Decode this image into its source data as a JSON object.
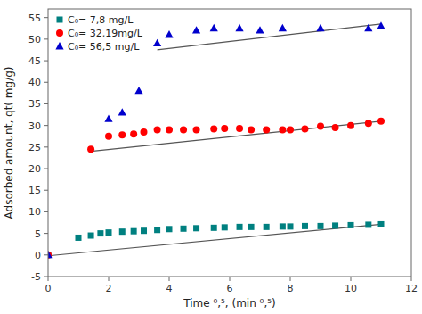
{
  "chart_data": {
    "type": "scatter",
    "xlabel": "Time ⁰,⁵, (min ⁰,⁵)",
    "ylabel": "Adsorbed amount, qt( mg/g)",
    "xlim": [
      0,
      12
    ],
    "ylim": [
      -5,
      57
    ],
    "xticks": [
      0,
      2,
      4,
      6,
      8,
      10,
      12
    ],
    "yticks": [
      -5,
      0,
      5,
      10,
      15,
      20,
      25,
      30,
      35,
      40,
      45,
      50,
      55
    ],
    "grid": false,
    "legend": "upper left",
    "series": [
      {
        "type": "line",
        "color": "#555555",
        "x": [
          0.0,
          11.0
        ],
        "values": [
          -0.2,
          7.1
        ]
      },
      {
        "type": "line",
        "color": "#555555",
        "x": [
          1.414,
          11.0
        ],
        "values": [
          24.0,
          31.0
        ]
      },
      {
        "type": "line",
        "color": "#555555",
        "x": [
          3.606,
          11.0
        ],
        "values": [
          47.5,
          53.5
        ]
      },
      {
        "type": "scatter",
        "name": "C₀= 7,8 mg/L",
        "color": "#008080",
        "marker": "square",
        "x": [
          0.0,
          1.0,
          1.414,
          1.732,
          2.0,
          2.449,
          2.828,
          3.162,
          3.606,
          4.0,
          4.472,
          4.899,
          5.477,
          5.831,
          6.325,
          6.708,
          7.211,
          7.746,
          8.0,
          8.485,
          9.0,
          9.487,
          10.0,
          10.583,
          11.0
        ],
        "values": [
          0.0,
          4.0,
          4.5,
          5.0,
          5.2,
          5.4,
          5.5,
          5.6,
          5.8,
          6.0,
          6.1,
          6.2,
          6.3,
          6.4,
          6.5,
          6.5,
          6.5,
          6.6,
          6.6,
          6.7,
          6.7,
          6.8,
          6.9,
          7.0,
          7.1
        ]
      },
      {
        "type": "scatter",
        "name": "C₀= 32,19mg/L",
        "color": "#ff0000",
        "marker": "circle",
        "x": [
          0.0,
          1.414,
          2.0,
          2.449,
          2.828,
          3.162,
          3.606,
          4.0,
          4.472,
          4.899,
          5.477,
          5.831,
          6.325,
          6.708,
          7.211,
          7.746,
          8.0,
          8.485,
          9.0,
          9.487,
          10.0,
          10.583,
          11.0
        ],
        "values": [
          0.0,
          24.5,
          27.5,
          27.8,
          28.0,
          28.5,
          29.0,
          29.0,
          29.0,
          29.0,
          29.2,
          29.3,
          29.3,
          29.0,
          29.0,
          29.0,
          29.0,
          29.2,
          29.8,
          29.5,
          30.0,
          30.5,
          31.0
        ]
      },
      {
        "type": "scatter",
        "name": "C₀= 56,5 mg/L",
        "color": "#0000cd",
        "marker": "triangle",
        "x": [
          0.0,
          2.0,
          2.449,
          3.0,
          3.606,
          4.0,
          4.899,
          5.477,
          6.325,
          7.0,
          7.746,
          9.0,
          10.583,
          11.0
        ],
        "values": [
          0.0,
          31.5,
          33.0,
          38.0,
          49.0,
          51.0,
          52.0,
          52.5,
          52.5,
          52.0,
          52.5,
          52.5,
          52.5,
          53.0
        ]
      }
    ]
  }
}
